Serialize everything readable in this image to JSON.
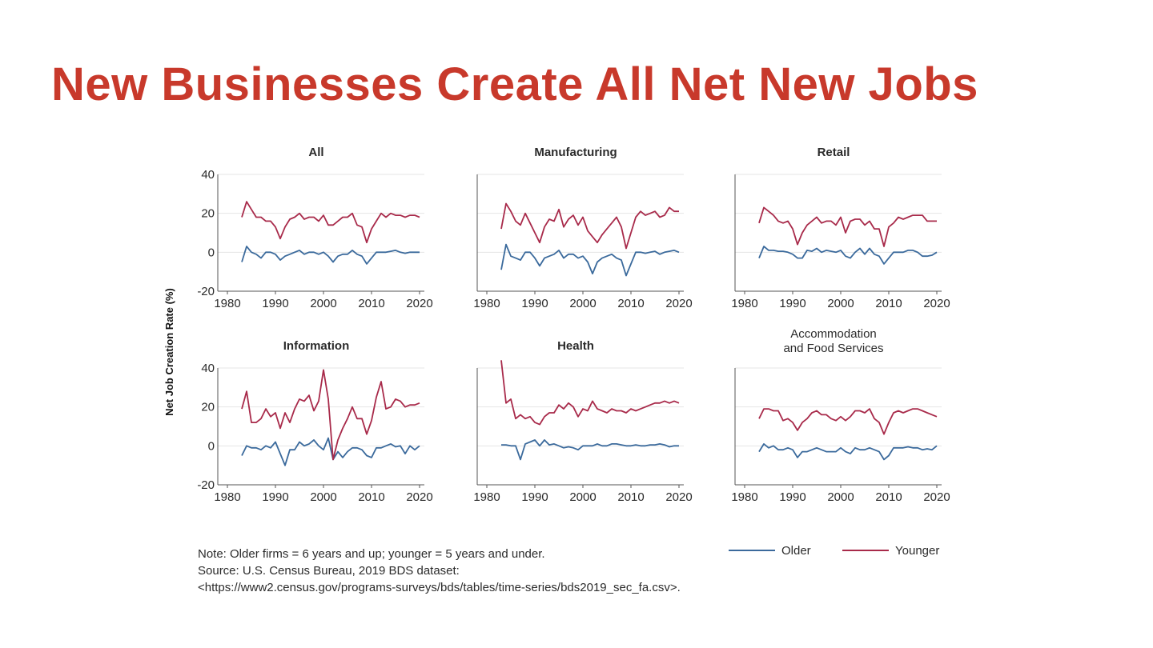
{
  "slide": {
    "title": "New Businesses Create All Net New Jobs"
  },
  "colors": {
    "title": "#c8392b",
    "older": "#3b6a9c",
    "younger": "#a82a4a",
    "grid": "#e4e4e4",
    "axis": "#555555",
    "text": "#2b2b2b"
  },
  "shared_ylabel": "Net Job Creation Rate (%)",
  "notes": {
    "note": "Note: Older firms = 6 years and up; younger = 5 years and under.",
    "source": "Source: U.S. Census Bureau, 2019 BDS dataset:",
    "url": "<https://www2.census.gov/programs-surveys/bds/tables/time-series/bds2019_sec_fa.csv>."
  },
  "legend": {
    "older": "Older",
    "younger": "Younger"
  },
  "chart_data": [
    {
      "type": "line",
      "title": "All",
      "xlim": [
        1978,
        2021
      ],
      "ylim": [
        -20,
        40
      ],
      "xticks": [
        "1980",
        "1990",
        "2000",
        "2010",
        "2020"
      ],
      "yticks": [
        "-20",
        "0",
        "20",
        "40"
      ],
      "series": [
        {
          "name": "Older",
          "x": [
            1983,
            1984,
            1985,
            1986,
            1987,
            1988,
            1989,
            1990,
            1991,
            1992,
            1993,
            1994,
            1995,
            1996,
            1997,
            1998,
            1999,
            2000,
            2001,
            2002,
            2003,
            2004,
            2005,
            2006,
            2007,
            2008,
            2009,
            2010,
            2011,
            2012,
            2013,
            2014,
            2015,
            2016,
            2017,
            2018,
            2019,
            2020
          ],
          "y": [
            -5,
            3,
            0,
            -1,
            -3,
            0,
            0,
            -1,
            -4,
            -2,
            -1,
            0,
            1,
            -1,
            0,
            0,
            -1,
            0,
            -2,
            -5,
            -2,
            -1,
            -1,
            1,
            -1,
            -2,
            -6,
            -3,
            0,
            0,
            0,
            0.5,
            1,
            0,
            -0.5,
            0,
            0,
            0
          ]
        },
        {
          "name": "Younger",
          "x": [
            1983,
            1984,
            1985,
            1986,
            1987,
            1988,
            1989,
            1990,
            1991,
            1992,
            1993,
            1994,
            1995,
            1996,
            1997,
            1998,
            1999,
            2000,
            2001,
            2002,
            2003,
            2004,
            2005,
            2006,
            2007,
            2008,
            2009,
            2010,
            2011,
            2012,
            2013,
            2014,
            2015,
            2016,
            2017,
            2018,
            2019,
            2020
          ],
          "y": [
            18,
            26,
            22,
            18,
            18,
            16,
            16,
            13,
            7,
            13,
            17,
            18,
            20,
            17,
            18,
            18,
            16,
            19,
            14,
            14,
            16,
            18,
            18,
            20,
            14,
            13,
            5,
            12,
            16,
            20,
            18,
            20,
            19,
            19,
            18,
            19,
            19,
            18
          ]
        }
      ]
    },
    {
      "type": "line",
      "title": "Manufacturing",
      "xlim": [
        1978,
        2021
      ],
      "ylim": [
        -20,
        40
      ],
      "xticks": [
        "1980",
        "1990",
        "2000",
        "2010",
        "2020"
      ],
      "yticks": [],
      "series": [
        {
          "name": "Older",
          "x": [
            1983,
            1984,
            1985,
            1986,
            1987,
            1988,
            1989,
            1990,
            1991,
            1992,
            1993,
            1994,
            1995,
            1996,
            1997,
            1998,
            1999,
            2000,
            2001,
            2002,
            2003,
            2004,
            2005,
            2006,
            2007,
            2008,
            2009,
            2010,
            2011,
            2012,
            2013,
            2014,
            2015,
            2016,
            2017,
            2018,
            2019,
            2020
          ],
          "y": [
            -9,
            4,
            -2,
            -3,
            -4,
            0,
            0,
            -3,
            -7,
            -3,
            -2,
            -1,
            1,
            -3,
            -1,
            -1,
            -3,
            -2,
            -5,
            -11,
            -5,
            -3,
            -2,
            -1,
            -3,
            -4,
            -12,
            -6,
            0,
            0,
            -0.5,
            0,
            0.5,
            -1,
            0,
            0.5,
            1,
            0
          ]
        },
        {
          "name": "Younger",
          "x": [
            1983,
            1984,
            1985,
            1986,
            1987,
            1988,
            1989,
            1990,
            1991,
            1992,
            1993,
            1994,
            1995,
            1996,
            1997,
            1998,
            1999,
            2000,
            2001,
            2002,
            2003,
            2004,
            2005,
            2006,
            2007,
            2008,
            2009,
            2010,
            2011,
            2012,
            2013,
            2014,
            2015,
            2016,
            2017,
            2018,
            2019,
            2020
          ],
          "y": [
            12,
            25,
            21,
            16,
            14,
            20,
            15,
            10,
            5,
            13,
            17,
            16,
            22,
            13,
            17,
            19,
            14,
            18,
            11,
            8,
            5,
            9,
            12,
            15,
            18,
            13,
            2,
            10,
            18,
            21,
            19,
            20,
            21,
            18,
            19,
            23,
            21,
            21
          ]
        }
      ]
    },
    {
      "type": "line",
      "title": "Retail",
      "xlim": [
        1978,
        2021
      ],
      "ylim": [
        -20,
        40
      ],
      "xticks": [
        "1980",
        "1990",
        "2000",
        "2010",
        "2020"
      ],
      "yticks": [],
      "series": [
        {
          "name": "Older",
          "x": [
            1983,
            1984,
            1985,
            1986,
            1987,
            1988,
            1989,
            1990,
            1991,
            1992,
            1993,
            1994,
            1995,
            1996,
            1997,
            1998,
            1999,
            2000,
            2001,
            2002,
            2003,
            2004,
            2005,
            2006,
            2007,
            2008,
            2009,
            2010,
            2011,
            2012,
            2013,
            2014,
            2015,
            2016,
            2017,
            2018,
            2019,
            2020
          ],
          "y": [
            -3,
            3,
            1,
            1,
            0.5,
            0.5,
            0,
            -1,
            -3,
            -3,
            1,
            0.5,
            2,
            0,
            1,
            0.5,
            0,
            1,
            -2,
            -3,
            0,
            2,
            -1,
            2,
            -1,
            -2,
            -6,
            -3,
            0,
            0,
            0,
            1,
            1,
            0,
            -2,
            -2,
            -1.5,
            0
          ]
        },
        {
          "name": "Younger",
          "x": [
            1983,
            1984,
            1985,
            1986,
            1987,
            1988,
            1989,
            1990,
            1991,
            1992,
            1993,
            1994,
            1995,
            1996,
            1997,
            1998,
            1999,
            2000,
            2001,
            2002,
            2003,
            2004,
            2005,
            2006,
            2007,
            2008,
            2009,
            2010,
            2011,
            2012,
            2013,
            2014,
            2015,
            2016,
            2017,
            2018,
            2019,
            2020
          ],
          "y": [
            15,
            23,
            21,
            19,
            16,
            15,
            16,
            12,
            4,
            10,
            14,
            16,
            18,
            15,
            16,
            16,
            14,
            18,
            10,
            16,
            17,
            17,
            14,
            16,
            12,
            12,
            3,
            13,
            15,
            18,
            17,
            18,
            19,
            19,
            19,
            16,
            16,
            16
          ]
        }
      ]
    },
    {
      "type": "line",
      "title": "Information",
      "xlim": [
        1978,
        2021
      ],
      "ylim": [
        -20,
        40
      ],
      "xticks": [
        "1980",
        "1990",
        "2000",
        "2010",
        "2020"
      ],
      "yticks": [
        "-20",
        "0",
        "20",
        "40"
      ],
      "series": [
        {
          "name": "Older",
          "x": [
            1983,
            1984,
            1985,
            1986,
            1987,
            1988,
            1989,
            1990,
            1991,
            1992,
            1993,
            1994,
            1995,
            1996,
            1997,
            1998,
            1999,
            2000,
            2001,
            2002,
            2003,
            2004,
            2005,
            2006,
            2007,
            2008,
            2009,
            2010,
            2011,
            2012,
            2013,
            2014,
            2015,
            2016,
            2017,
            2018,
            2019,
            2020
          ],
          "y": [
            -5,
            0,
            -1,
            -1,
            -2,
            0,
            -1,
            2,
            -4,
            -10,
            -2,
            -2,
            2,
            0,
            1,
            3,
            0,
            -2,
            4,
            -7,
            -3,
            -6,
            -3,
            -1,
            -1,
            -2,
            -5,
            -6,
            -1,
            -1,
            0,
            1,
            -0.5,
            0,
            -4,
            0,
            -2,
            0
          ]
        },
        {
          "name": "Younger",
          "x": [
            1983,
            1984,
            1985,
            1986,
            1987,
            1988,
            1989,
            1990,
            1991,
            1992,
            1993,
            1994,
            1995,
            1996,
            1997,
            1998,
            1999,
            2000,
            2001,
            2002,
            2003,
            2004,
            2005,
            2006,
            2007,
            2008,
            2009,
            2010,
            2011,
            2012,
            2013,
            2014,
            2015,
            2016,
            2017,
            2018,
            2019,
            2020
          ],
          "y": [
            19,
            28,
            12,
            12,
            14,
            19,
            15,
            17,
            9,
            17,
            12,
            19,
            24,
            23,
            26,
            18,
            23,
            39,
            24,
            -7,
            3,
            9,
            14,
            20,
            14,
            14,
            6,
            13,
            25,
            33,
            19,
            20,
            24,
            23,
            20,
            21,
            21,
            22
          ]
        }
      ]
    },
    {
      "type": "line",
      "title": "Health",
      "xlim": [
        1978,
        2021
      ],
      "ylim": [
        -20,
        40
      ],
      "xticks": [
        "1980",
        "1990",
        "2000",
        "2010",
        "2020"
      ],
      "yticks": [],
      "series": [
        {
          "name": "Older",
          "x": [
            1983,
            1984,
            1985,
            1986,
            1987,
            1988,
            1989,
            1990,
            1991,
            1992,
            1993,
            1994,
            1995,
            1996,
            1997,
            1998,
            1999,
            2000,
            2001,
            2002,
            2003,
            2004,
            2005,
            2006,
            2007,
            2008,
            2009,
            2010,
            2011,
            2012,
            2013,
            2014,
            2015,
            2016,
            2017,
            2018,
            2019,
            2020
          ],
          "y": [
            0.5,
            0.5,
            0,
            0,
            -7,
            1,
            2,
            3,
            0,
            3,
            0.5,
            1,
            0,
            -1,
            -0.5,
            -1,
            -2,
            0,
            0,
            0,
            1,
            0,
            0,
            1,
            1,
            0.5,
            0,
            0,
            0.5,
            0,
            0,
            0.5,
            0.5,
            1,
            0.5,
            -0.5,
            0,
            0
          ]
        },
        {
          "name": "Younger",
          "x": [
            1983,
            1984,
            1985,
            1986,
            1987,
            1988,
            1989,
            1990,
            1991,
            1992,
            1993,
            1994,
            1995,
            1996,
            1997,
            1998,
            1999,
            2000,
            2001,
            2002,
            2003,
            2004,
            2005,
            2006,
            2007,
            2008,
            2009,
            2010,
            2011,
            2012,
            2013,
            2014,
            2015,
            2016,
            2017,
            2018,
            2019,
            2020
          ],
          "y": [
            44,
            22,
            24,
            14,
            16,
            14,
            15,
            12,
            11,
            15,
            17,
            17,
            21,
            19,
            22,
            20,
            15,
            19,
            18,
            23,
            19,
            18,
            17,
            19,
            18,
            18,
            17,
            19,
            18,
            19,
            20,
            21,
            22,
            22,
            23,
            22,
            23,
            22
          ]
        }
      ]
    },
    {
      "type": "line",
      "title": "Accommodation and Food Services",
      "title_lines": [
        "Accommodation",
        "and Food Services"
      ],
      "xlim": [
        1978,
        2021
      ],
      "ylim": [
        -20,
        40
      ],
      "xticks": [
        "1980",
        "1990",
        "2000",
        "2010",
        "2020"
      ],
      "yticks": [],
      "series": [
        {
          "name": "Older",
          "x": [
            1983,
            1984,
            1985,
            1986,
            1987,
            1988,
            1989,
            1990,
            1991,
            1992,
            1993,
            1994,
            1995,
            1996,
            1997,
            1998,
            1999,
            2000,
            2001,
            2002,
            2003,
            2004,
            2005,
            2006,
            2007,
            2008,
            2009,
            2010,
            2011,
            2012,
            2013,
            2014,
            2015,
            2016,
            2017,
            2018,
            2019,
            2020
          ],
          "y": [
            -3,
            1,
            -1,
            0,
            -2,
            -2,
            -1,
            -2,
            -6,
            -3,
            -3,
            -2,
            -1,
            -2,
            -3,
            -3,
            -3,
            -1,
            -3,
            -4,
            -1,
            -2,
            -2,
            -1,
            -2,
            -3,
            -7,
            -5,
            -1,
            -1,
            -1,
            -0.5,
            -1,
            -1,
            -2,
            -1.5,
            -2,
            0
          ]
        },
        {
          "name": "Younger",
          "x": [
            1983,
            1984,
            1985,
            1986,
            1987,
            1988,
            1989,
            1990,
            1991,
            1992,
            1993,
            1994,
            1995,
            1996,
            1997,
            1998,
            1999,
            2000,
            2001,
            2002,
            2003,
            2004,
            2005,
            2006,
            2007,
            2008,
            2009,
            2010,
            2011,
            2012,
            2013,
            2014,
            2015,
            2016,
            2017,
            2018,
            2019,
            2020
          ],
          "y": [
            14,
            19,
            19,
            18,
            18,
            13,
            14,
            12,
            8,
            12,
            14,
            17,
            18,
            16,
            16,
            14,
            13,
            15,
            13,
            15,
            18,
            18,
            17,
            19,
            14,
            12,
            6,
            12,
            17,
            18,
            17,
            18,
            19,
            19,
            18,
            17,
            16,
            15
          ]
        }
      ]
    }
  ]
}
